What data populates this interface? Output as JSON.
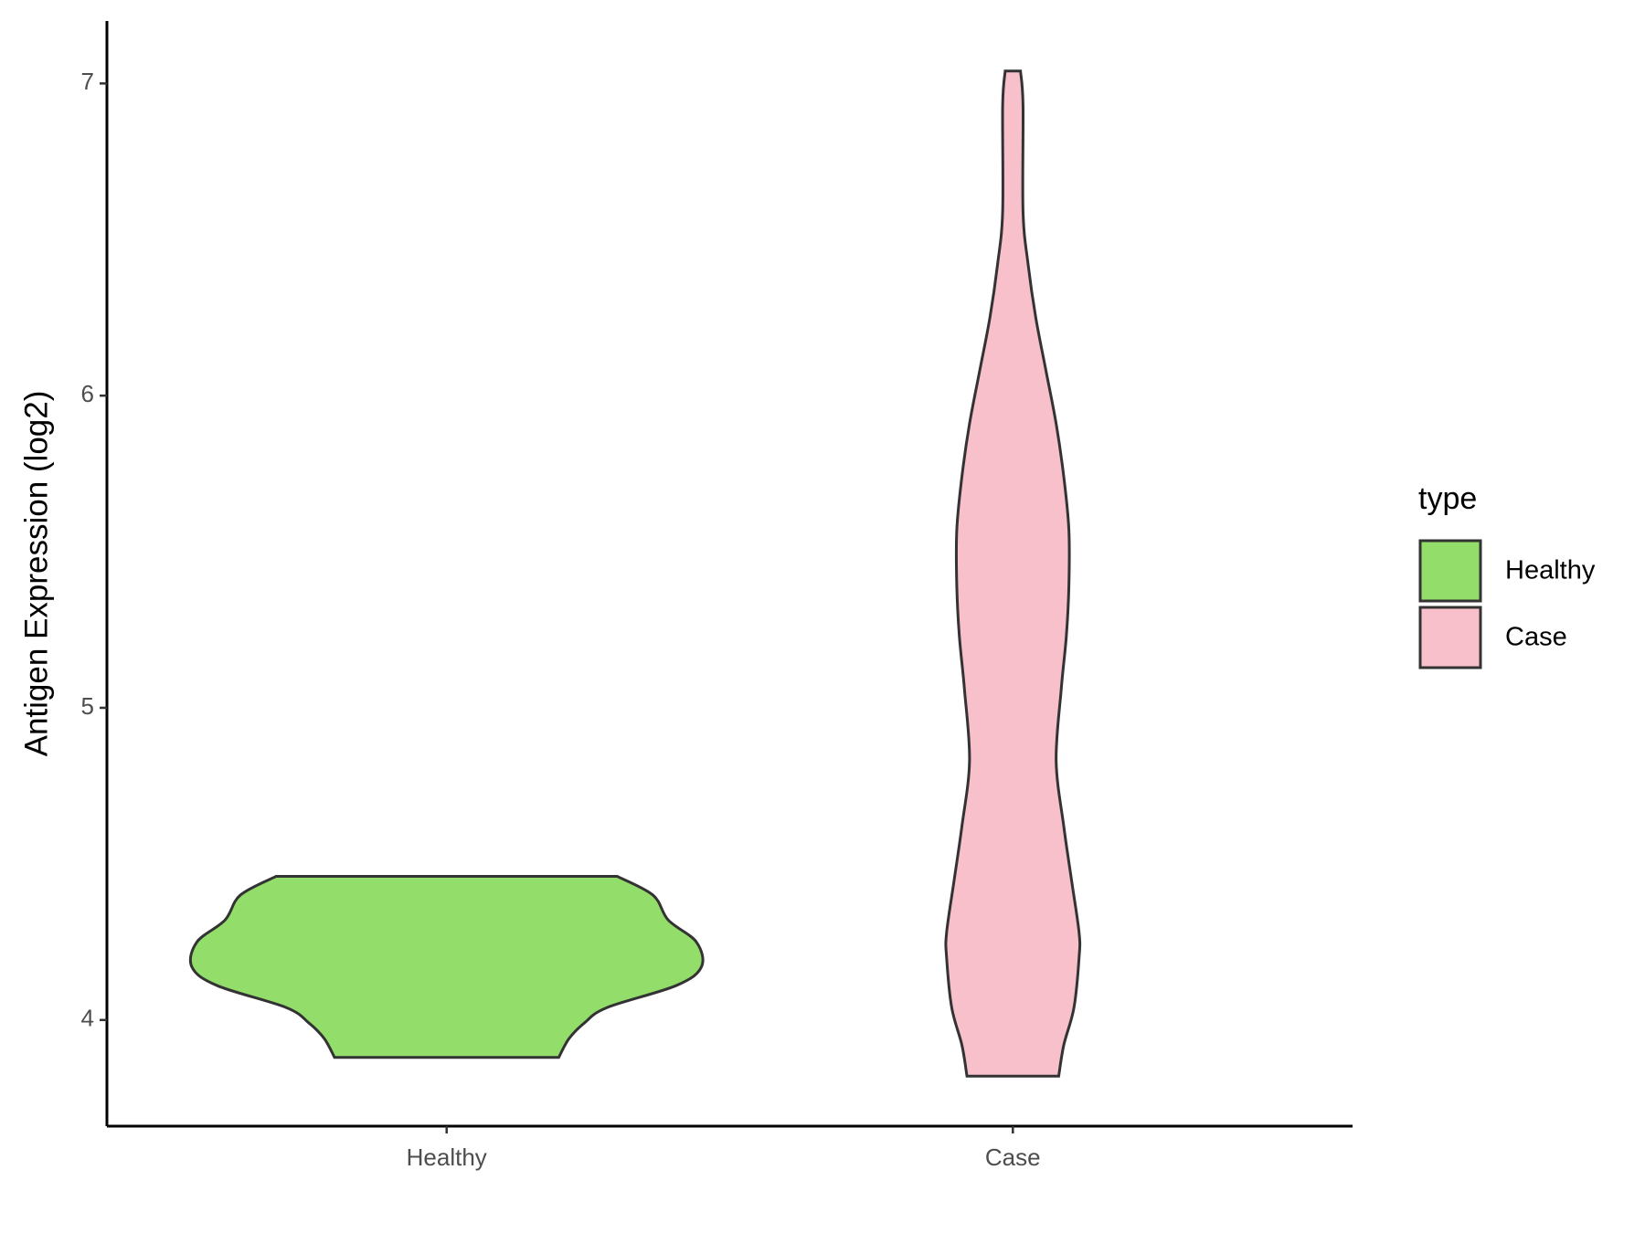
{
  "chart_data": {
    "type": "violin",
    "y_label": "Antigen Expression (log2)",
    "categories": [
      "Healthy",
      "Case"
    ],
    "ylim": [
      3.66,
      7.2
    ],
    "yticks": [
      4,
      5,
      6,
      7
    ],
    "legend_title": "type",
    "legend_position": "right",
    "outline_color": "#333333",
    "series": [
      {
        "name": "Healthy",
        "color": "#93DD6A",
        "y": [
          4.46,
          4.4,
          4.32,
          4.25,
          4.17,
          4.11,
          4.04,
          3.99,
          3.94,
          3.88
        ],
        "density": [
          0.67,
          0.81,
          0.87,
          0.98,
          1.0,
          0.9,
          0.63,
          0.54,
          0.48,
          0.44
        ]
      },
      {
        "name": "Case",
        "color": "#F8C0CB",
        "y": [
          7.04,
          6.93,
          6.59,
          6.42,
          6.25,
          6.08,
          5.91,
          5.74,
          5.57,
          5.39,
          5.23,
          5.06,
          4.83,
          4.62,
          4.45,
          4.28,
          4.2,
          4.04,
          3.92,
          3.82
        ],
        "density": [
          0.03,
          0.04,
          0.04,
          0.06,
          0.09,
          0.13,
          0.17,
          0.2,
          0.22,
          0.22,
          0.21,
          0.19,
          0.17,
          0.2,
          0.23,
          0.26,
          0.26,
          0.24,
          0.2,
          0.18
        ]
      }
    ]
  }
}
